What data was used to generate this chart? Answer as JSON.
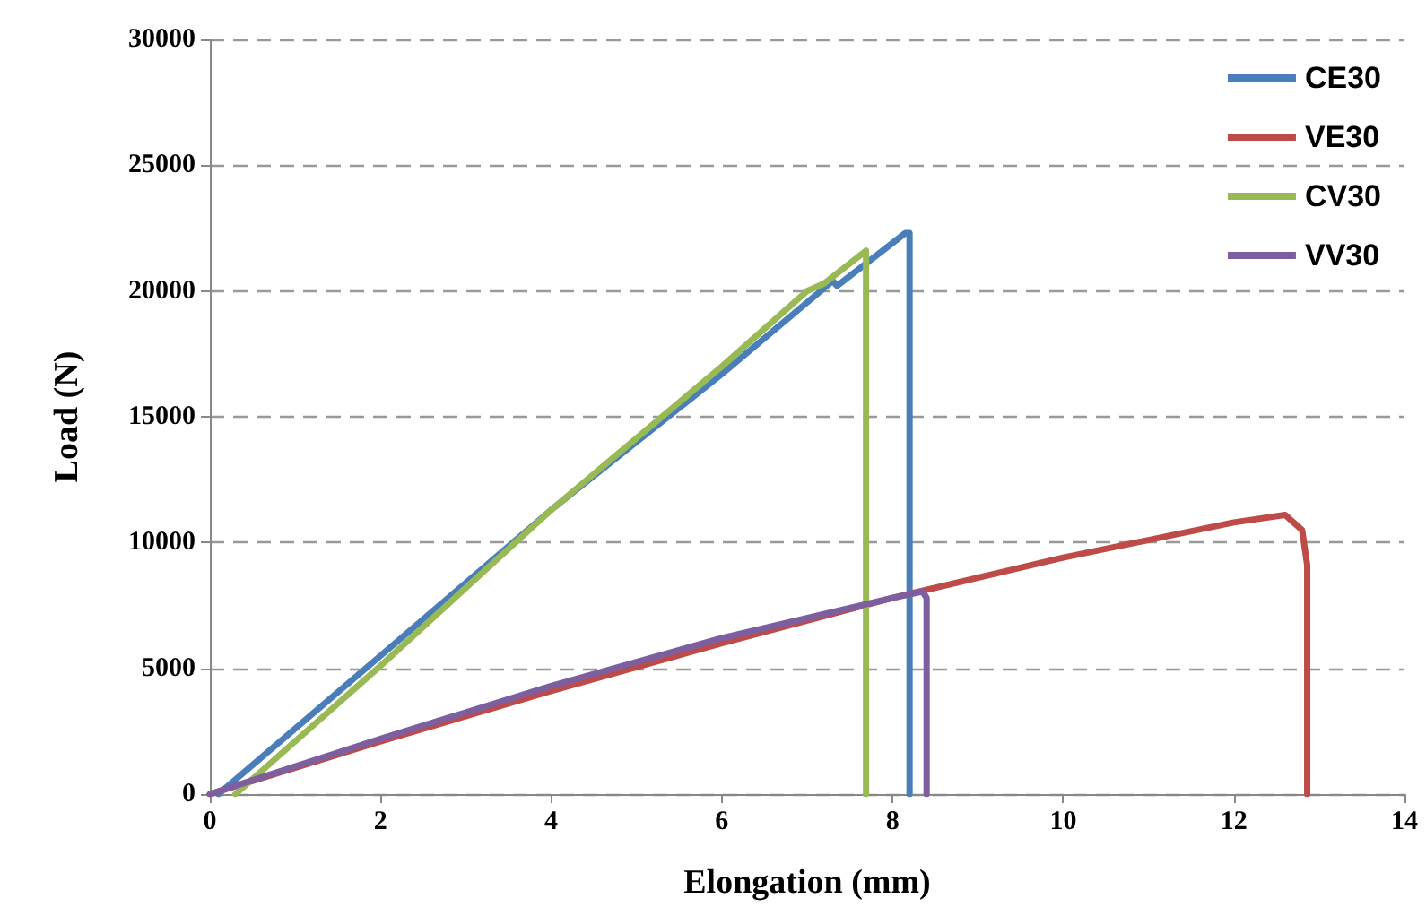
{
  "chart_data": {
    "type": "line",
    "xlabel": "Elongation (mm)",
    "ylabel": "Load (N)",
    "xlim": [
      0,
      14
    ],
    "xticks": [
      0,
      2,
      4,
      6,
      8,
      10,
      12,
      14
    ],
    "ylim": [
      0,
      30000
    ],
    "yticks": [
      0,
      5000,
      10000,
      15000,
      20000,
      25000,
      30000
    ],
    "grid": "y",
    "legend": "top right",
    "marker": "none",
    "line_style": "solid",
    "series": [
      {
        "name": "CE30",
        "color": "#4a7ebb",
        "x": [
          0.1,
          2,
          4,
          6,
          7.3,
          7.35,
          8.15,
          8.2,
          8.2
        ],
        "values": [
          0,
          5500,
          11300,
          16700,
          20400,
          20200,
          22300,
          22300,
          0
        ]
      },
      {
        "name": "VE30",
        "color": "#be4b48",
        "x": [
          0,
          2,
          4,
          6,
          8,
          10,
          12,
          12.6,
          12.8,
          12.86,
          12.86
        ],
        "values": [
          0,
          2100,
          4100,
          6000,
          7800,
          9400,
          10800,
          11100,
          10500,
          9100,
          0
        ]
      },
      {
        "name": "CV30",
        "color": "#98b954",
        "x": [
          0.3,
          2,
          4,
          6,
          7,
          7.2,
          7.69,
          7.69
        ],
        "values": [
          0,
          5100,
          11300,
          17000,
          20000,
          20300,
          21600,
          0
        ]
      },
      {
        "name": "VV30",
        "color": "#7d5fa0",
        "x": [
          0,
          2,
          4,
          6,
          8,
          8.35,
          8.4,
          8.4
        ],
        "values": [
          0,
          2200,
          4300,
          6200,
          7800,
          8050,
          7800,
          0
        ]
      }
    ]
  }
}
